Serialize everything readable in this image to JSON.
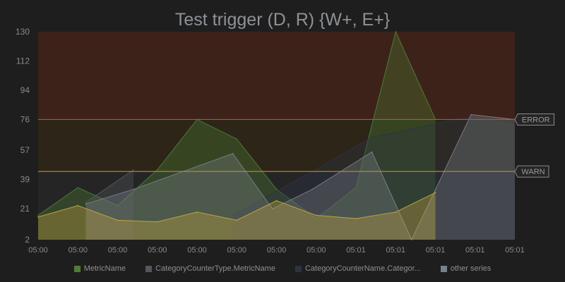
{
  "chart_data": {
    "type": "area",
    "title": "Test trigger (D, R) {W+, E+}",
    "y_ticks": [
      "2",
      "21",
      "39",
      "57",
      "76",
      "94",
      "112",
      "130"
    ],
    "ylim": [
      2,
      130
    ],
    "x_ticks": [
      "05:00",
      "05:00",
      "05:00",
      "05:00",
      "05:00",
      "05:00",
      "05:00",
      "05:00",
      "05:01",
      "05:01",
      "05:01",
      "05:01",
      "05:01"
    ],
    "x": [
      0,
      1,
      2,
      3,
      4,
      5,
      6,
      7,
      8,
      9,
      10,
      11,
      12
    ],
    "series": [
      {
        "name": "MetricName",
        "color": "#4e7d37",
        "points": [
          [
            0,
            17
          ],
          [
            1,
            34
          ],
          [
            2,
            23
          ],
          [
            3,
            45
          ],
          [
            4,
            76
          ],
          [
            5,
            64
          ],
          [
            6,
            33
          ],
          [
            7,
            15
          ],
          [
            8,
            34
          ],
          [
            9,
            130
          ],
          [
            10,
            76
          ]
        ]
      },
      {
        "name": "CategoryCounterType.MetricName",
        "color": "#52585e",
        "points": [
          [
            1.2,
            25
          ],
          [
            2.4,
            45
          ]
        ]
      },
      {
        "name": "CategoryCounterName.Categor...",
        "color": "#2c3344",
        "points": [
          [
            4.9,
            17
          ],
          [
            6.9,
            44
          ],
          [
            8.4,
            65
          ],
          [
            10.9,
            78
          ],
          [
            12,
            72
          ]
        ]
      },
      {
        "name": "other series",
        "color": "#7a8088",
        "points": [
          [
            1.2,
            24
          ],
          [
            2.4,
            33
          ],
          [
            4.9,
            55
          ],
          [
            5.9,
            21
          ],
          [
            6.9,
            33
          ],
          [
            8.4,
            56
          ],
          [
            9.4,
            2
          ],
          [
            10.9,
            79
          ],
          [
            12,
            76
          ]
        ]
      },
      {
        "name": "",
        "color": "#c8a53e",
        "points": [
          [
            0,
            16
          ],
          [
            1,
            23
          ],
          [
            2,
            14
          ],
          [
            3,
            13
          ],
          [
            4,
            19
          ],
          [
            5,
            14
          ],
          [
            6,
            26
          ],
          [
            7,
            17
          ],
          [
            8,
            15
          ],
          [
            9,
            19
          ],
          [
            10,
            31
          ]
        ]
      }
    ],
    "thresholds": [
      {
        "label": "ERROR",
        "value": 76,
        "color": "#c84a3a",
        "fill": "#3d2219"
      },
      {
        "label": "WARN",
        "value": 44,
        "color": "#c88a2e",
        "fill": "#2c2518"
      }
    ],
    "legend": [
      "MetricName",
      "CategoryCounterType.MetricName",
      "CategoryCounterName.Categor...",
      "other series"
    ],
    "legend_position": "bottom",
    "grid": false
  }
}
